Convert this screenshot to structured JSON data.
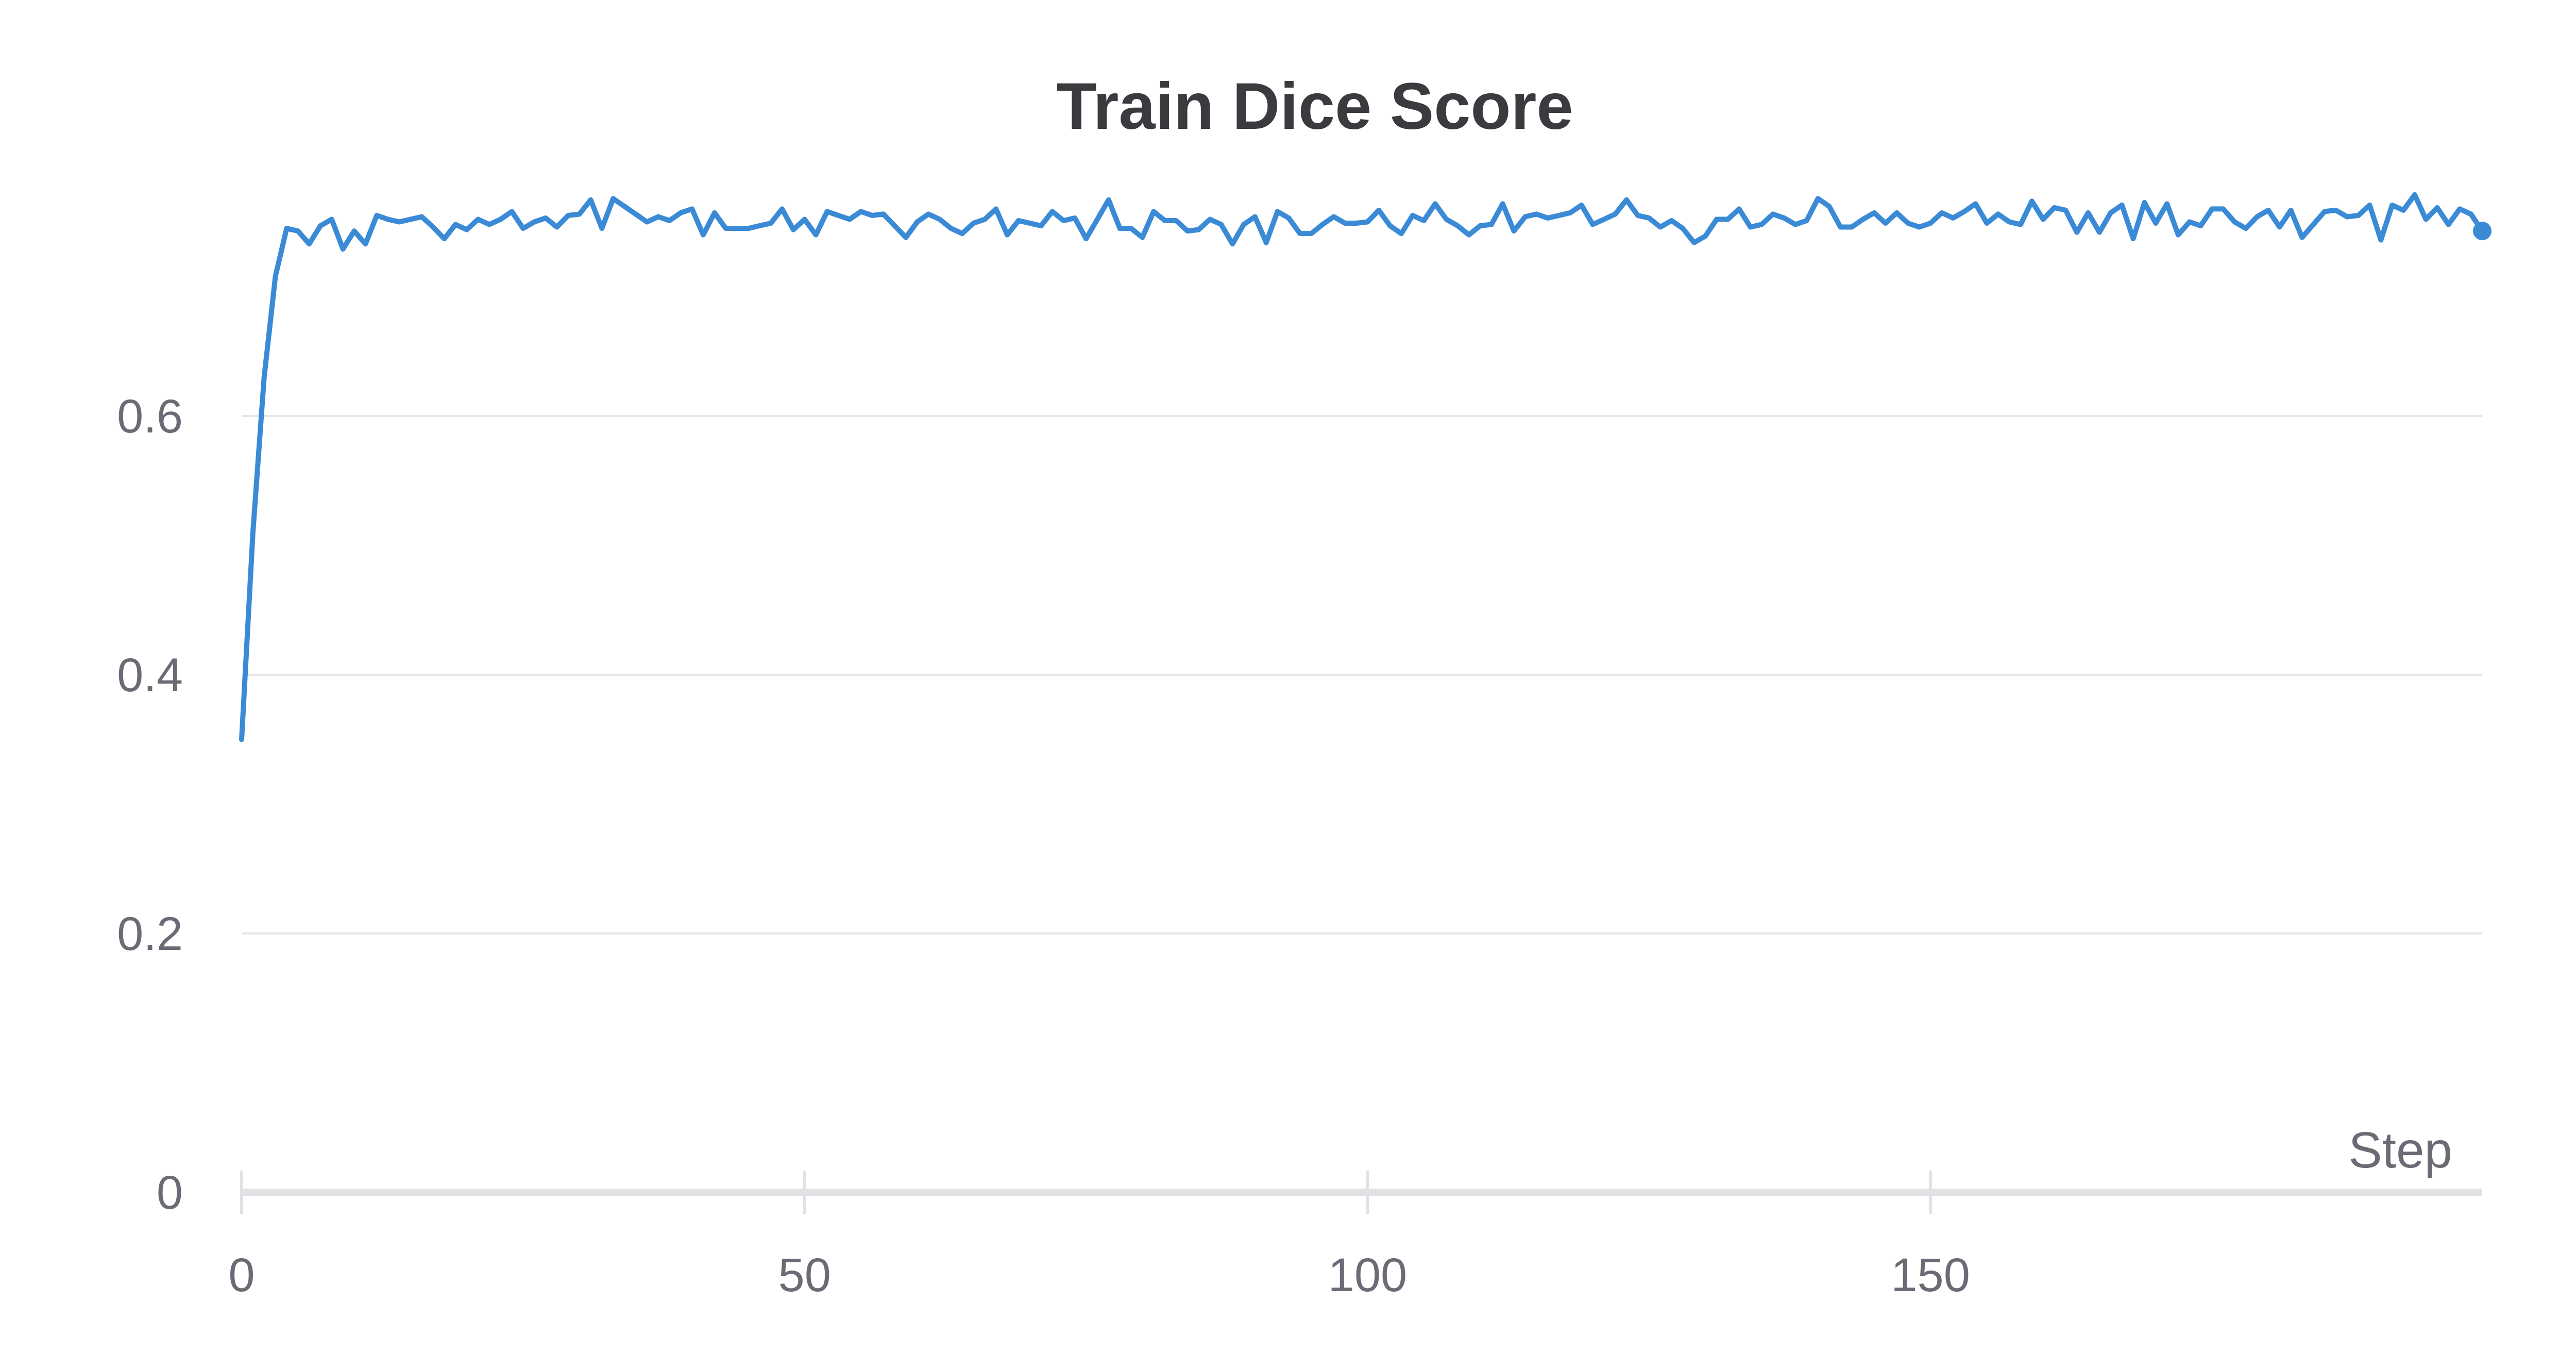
{
  "chart_data": {
    "type": "line",
    "title": "Train Dice Score",
    "xlabel": "Step",
    "ylabel": "",
    "xlim": [
      0,
      199
    ],
    "ylim": [
      0,
      0.8
    ],
    "x_ticks": [
      0,
      50,
      100,
      150
    ],
    "x_tick_labels": [
      "0",
      "50",
      "100",
      "150"
    ],
    "y_ticks": [
      0,
      0.2,
      0.4,
      0.6
    ],
    "y_tick_labels": [
      "0",
      "0.2",
      "0.4",
      "0.6"
    ],
    "grid": true,
    "series": [
      {
        "name": "Train Dice Score",
        "color": "#3a8ad6",
        "x": [
          0,
          1,
          2,
          3,
          4,
          5,
          6,
          7,
          8,
          9,
          10,
          11,
          12,
          13,
          14,
          15,
          16,
          17,
          18,
          19,
          20,
          21,
          22,
          23,
          24,
          25,
          26,
          27,
          28,
          29,
          30,
          31,
          32,
          33,
          34,
          35,
          36,
          37,
          38,
          39,
          40,
          41,
          42,
          43,
          44,
          45,
          46,
          47,
          48,
          49,
          50,
          51,
          52,
          53,
          54,
          55,
          56,
          57,
          58,
          59,
          60,
          61,
          62,
          63,
          64,
          65,
          66,
          67,
          68,
          69,
          70,
          71,
          72,
          73,
          74,
          75,
          76,
          77,
          78,
          79,
          80,
          81,
          82,
          83,
          84,
          85,
          86,
          87,
          88,
          89,
          90,
          91,
          92,
          93,
          94,
          95,
          96,
          97,
          98,
          99,
          100,
          101,
          102,
          103,
          104,
          105,
          106,
          107,
          108,
          109,
          110,
          111,
          112,
          113,
          114,
          115,
          116,
          117,
          118,
          119,
          120,
          121,
          122,
          123,
          124,
          125,
          126,
          127,
          128,
          129,
          130,
          131,
          132,
          133,
          134,
          135,
          136,
          137,
          138,
          139,
          140,
          141,
          142,
          143,
          144,
          145,
          146,
          147,
          148,
          149,
          150,
          151,
          152,
          153,
          154,
          155,
          156,
          157,
          158,
          159,
          160,
          161,
          162,
          163,
          164,
          165,
          166,
          167,
          168,
          169,
          170,
          171,
          172,
          173,
          174,
          175,
          176,
          177,
          178,
          179,
          180,
          181,
          182,
          183,
          184,
          185,
          186,
          187,
          188,
          189,
          190,
          191,
          192,
          193,
          194,
          195,
          196,
          197,
          198,
          199
        ],
        "values": [
          0.35,
          0.51,
          0.63,
          0.708,
          0.745,
          0.743,
          0.733,
          0.747,
          0.752,
          0.729,
          0.743,
          0.733,
          0.755,
          0.752,
          0.75,
          0.752,
          0.754,
          0.746,
          0.737,
          0.748,
          0.744,
          0.752,
          0.748,
          0.752,
          0.758,
          0.745,
          0.75,
          0.753,
          0.746,
          0.755,
          0.756,
          0.767,
          0.745,
          0.768,
          0.762,
          0.756,
          0.75,
          0.754,
          0.751,
          0.757,
          0.76,
          0.74,
          0.757,
          0.745,
          0.745,
          0.745,
          0.747,
          0.749,
          0.76,
          0.744,
          0.752,
          0.74,
          0.758,
          0.755,
          0.752,
          0.758,
          0.755,
          0.756,
          0.747,
          0.738,
          0.75,
          0.756,
          0.752,
          0.745,
          0.741,
          0.749,
          0.752,
          0.76,
          0.74,
          0.751,
          0.749,
          0.747,
          0.758,
          0.751,
          0.753,
          0.737,
          0.752,
          0.767,
          0.745,
          0.745,
          0.738,
          0.758,
          0.751,
          0.751,
          0.743,
          0.744,
          0.752,
          0.748,
          0.733,
          0.748,
          0.754,
          0.734,
          0.758,
          0.753,
          0.741,
          0.741,
          0.748,
          0.754,
          0.749,
          0.749,
          0.75,
          0.759,
          0.747,
          0.741,
          0.755,
          0.751,
          0.764,
          0.752,
          0.747,
          0.74,
          0.747,
          0.748,
          0.764,
          0.743,
          0.754,
          0.756,
          0.753,
          0.755,
          0.757,
          0.763,
          0.748,
          0.752,
          0.756,
          0.767,
          0.755,
          0.753,
          0.746,
          0.751,
          0.745,
          0.734,
          0.739,
          0.752,
          0.752,
          0.76,
          0.746,
          0.748,
          0.756,
          0.753,
          0.748,
          0.751,
          0.768,
          0.762,
          0.746,
          0.746,
          0.752,
          0.757,
          0.749,
          0.757,
          0.749,
          0.746,
          0.749,
          0.757,
          0.753,
          0.758,
          0.764,
          0.749,
          0.756,
          0.75,
          0.748,
          0.766,
          0.752,
          0.761,
          0.759,
          0.742,
          0.757,
          0.742,
          0.757,
          0.763,
          0.737,
          0.765,
          0.749,
          0.764,
          0.74,
          0.75,
          0.747,
          0.76,
          0.76,
          0.75,
          0.745,
          0.754,
          0.759,
          0.746,
          0.759,
          0.738,
          0.748,
          0.758,
          0.759,
          0.754,
          0.755,
          0.763,
          0.736,
          0.763,
          0.759,
          0.771,
          0.752,
          0.761,
          0.748,
          0.76,
          0.756,
          0.743
        ]
      }
    ]
  }
}
